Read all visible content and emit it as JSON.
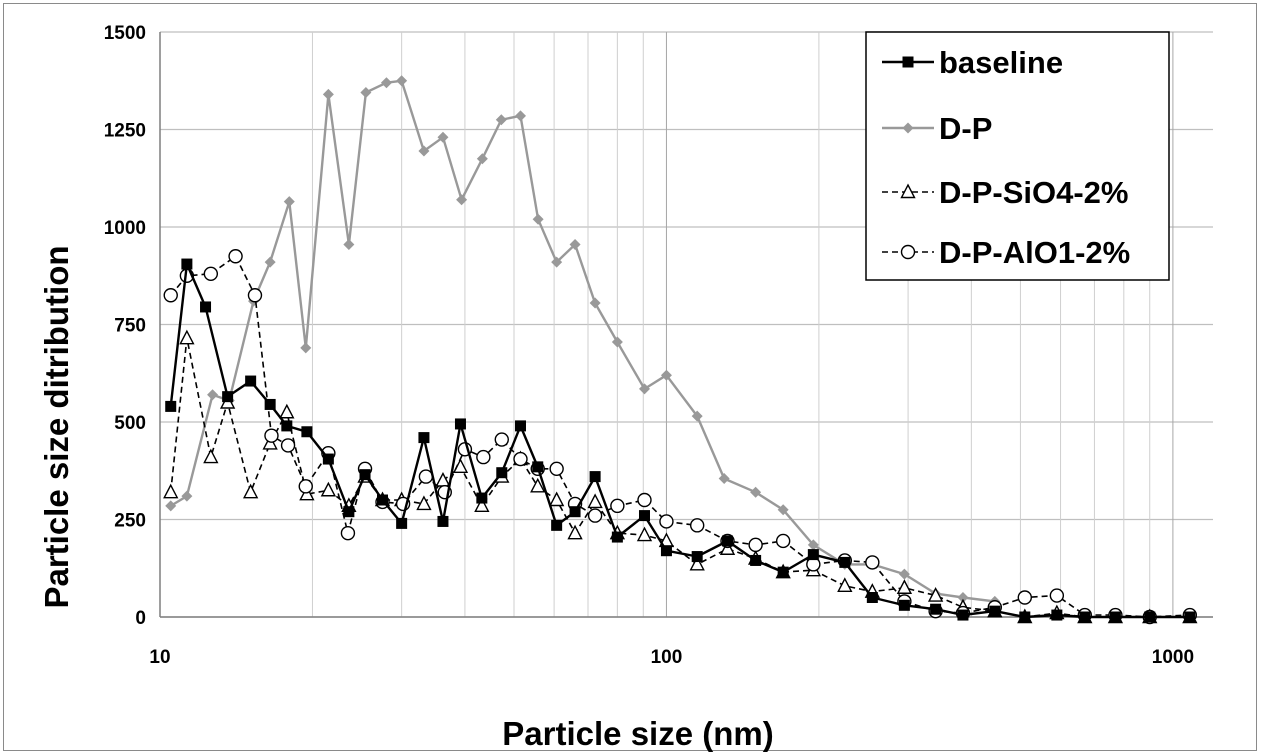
{
  "chart_data": {
    "type": "line",
    "xlabel": "Particle size (nm)",
    "ylabel": "Particle size ditribution",
    "x_scale": "log",
    "xlim": [
      10,
      1200
    ],
    "ylim": [
      0,
      1500
    ],
    "y_ticks": [
      0,
      250,
      500,
      750,
      1000,
      1250,
      1500
    ],
    "x_ticks": [
      10,
      100,
      1000
    ],
    "grid": true,
    "legend_position": "top-right",
    "series": [
      {
        "name": "baseline",
        "color": "#000000",
        "marker": "filled-square",
        "line_style": "solid",
        "points": [
          [
            10.5,
            540
          ],
          [
            11.3,
            905
          ],
          [
            12.3,
            795
          ],
          [
            13.6,
            565
          ],
          [
            15.1,
            605
          ],
          [
            16.5,
            545
          ],
          [
            17.8,
            490
          ],
          [
            19.5,
            475
          ],
          [
            21.5,
            405
          ],
          [
            23.6,
            270
          ],
          [
            25.4,
            365
          ],
          [
            27.5,
            300
          ],
          [
            30.0,
            240
          ],
          [
            33.2,
            460
          ],
          [
            36.2,
            245
          ],
          [
            39.2,
            495
          ],
          [
            43.2,
            305
          ],
          [
            47.3,
            370
          ],
          [
            51.5,
            490
          ],
          [
            55.7,
            385
          ],
          [
            60.7,
            235
          ],
          [
            66.0,
            270
          ],
          [
            72.3,
            360
          ],
          [
            80.0,
            205
          ],
          [
            90.5,
            260
          ],
          [
            100,
            170
          ],
          [
            115,
            155
          ],
          [
            132,
            195
          ],
          [
            150,
            145
          ],
          [
            170,
            115
          ],
          [
            195,
            160
          ],
          [
            225,
            140
          ],
          [
            255,
            50
          ],
          [
            295,
            30
          ],
          [
            340,
            20
          ],
          [
            385,
            5
          ],
          [
            445,
            15
          ],
          [
            510,
            0
          ],
          [
            590,
            5
          ],
          [
            670,
            0
          ],
          [
            770,
            0
          ],
          [
            900,
            0
          ],
          [
            1080,
            0
          ]
        ]
      },
      {
        "name": "D-P",
        "color": "#999999",
        "marker": "filled-diamond",
        "line_style": "solid",
        "points": [
          [
            10.5,
            285
          ],
          [
            11.3,
            310
          ],
          [
            12.7,
            570
          ],
          [
            13.7,
            555
          ],
          [
            15.3,
            810
          ],
          [
            16.5,
            910
          ],
          [
            18.0,
            1065
          ],
          [
            19.4,
            690
          ],
          [
            21.5,
            1340
          ],
          [
            23.6,
            955
          ],
          [
            25.5,
            1345
          ],
          [
            28.0,
            1370
          ],
          [
            30.0,
            1375
          ],
          [
            33.2,
            1195
          ],
          [
            36.2,
            1230
          ],
          [
            39.4,
            1070
          ],
          [
            43.3,
            1175
          ],
          [
            47.2,
            1275
          ],
          [
            51.5,
            1285
          ],
          [
            55.8,
            1020
          ],
          [
            60.7,
            910
          ],
          [
            66.0,
            955
          ],
          [
            72.3,
            805
          ],
          [
            80.0,
            705
          ],
          [
            90.5,
            585
          ],
          [
            100,
            620
          ],
          [
            115,
            515
          ],
          [
            130,
            355
          ],
          [
            150,
            320
          ],
          [
            170,
            275
          ],
          [
            195,
            185
          ],
          [
            225,
            135
          ],
          [
            255,
            135
          ],
          [
            295,
            110
          ],
          [
            340,
            60
          ],
          [
            385,
            50
          ],
          [
            445,
            40
          ]
        ]
      },
      {
        "name": "D-P-SiO4-2%",
        "color": "#000000",
        "marker": "open-triangle",
        "line_style": "dashed",
        "points": [
          [
            10.5,
            320
          ],
          [
            11.3,
            715
          ],
          [
            12.6,
            410
          ],
          [
            13.6,
            550
          ],
          [
            15.1,
            320
          ],
          [
            16.5,
            445
          ],
          [
            17.8,
            525
          ],
          [
            19.5,
            315
          ],
          [
            21.5,
            325
          ],
          [
            23.6,
            285
          ],
          [
            25.4,
            360
          ],
          [
            27.5,
            300
          ],
          [
            30.0,
            300
          ],
          [
            33.2,
            290
          ],
          [
            36.2,
            350
          ],
          [
            39.2,
            385
          ],
          [
            43.2,
            285
          ],
          [
            47.3,
            360
          ],
          [
            51.5,
            405
          ],
          [
            55.7,
            335
          ],
          [
            60.7,
            300
          ],
          [
            66.0,
            215
          ],
          [
            72.3,
            295
          ],
          [
            80.0,
            215
          ],
          [
            90.5,
            210
          ],
          [
            100,
            195
          ],
          [
            115,
            135
          ],
          [
            132,
            175
          ],
          [
            150,
            150
          ],
          [
            170,
            115
          ],
          [
            195,
            120
          ],
          [
            225,
            80
          ],
          [
            255,
            65
          ],
          [
            295,
            75
          ],
          [
            340,
            55
          ],
          [
            385,
            25
          ],
          [
            445,
            15
          ],
          [
            510,
            0
          ],
          [
            590,
            10
          ],
          [
            670,
            0
          ],
          [
            770,
            0
          ],
          [
            900,
            0
          ],
          [
            1080,
            0
          ]
        ]
      },
      {
        "name": "D-P-AlO1-2%",
        "color": "#000000",
        "marker": "open-circle",
        "line_style": "dashed",
        "points": [
          [
            10.5,
            825
          ],
          [
            11.3,
            875
          ],
          [
            12.6,
            880
          ],
          [
            14.1,
            925
          ],
          [
            15.4,
            825
          ],
          [
            16.6,
            465
          ],
          [
            17.9,
            440
          ],
          [
            19.4,
            335
          ],
          [
            21.5,
            420
          ],
          [
            23.5,
            215
          ],
          [
            25.4,
            380
          ],
          [
            27.5,
            295
          ],
          [
            30.2,
            290
          ],
          [
            33.5,
            360
          ],
          [
            36.5,
            320
          ],
          [
            40.0,
            430
          ],
          [
            43.5,
            410
          ],
          [
            47.3,
            455
          ],
          [
            51.5,
            405
          ],
          [
            55.7,
            380
          ],
          [
            60.7,
            380
          ],
          [
            66.0,
            290
          ],
          [
            72.3,
            260
          ],
          [
            80.0,
            285
          ],
          [
            90.5,
            300
          ],
          [
            100,
            245
          ],
          [
            115,
            235
          ],
          [
            132,
            195
          ],
          [
            150,
            185
          ],
          [
            170,
            195
          ],
          [
            195,
            135
          ],
          [
            225,
            145
          ],
          [
            255,
            140
          ],
          [
            295,
            40
          ],
          [
            340,
            15
          ],
          [
            385,
            10
          ],
          [
            445,
            25
          ],
          [
            510,
            50
          ],
          [
            590,
            55
          ],
          [
            670,
            5
          ],
          [
            770,
            5
          ],
          [
            900,
            0
          ],
          [
            1080,
            5
          ]
        ]
      }
    ]
  }
}
